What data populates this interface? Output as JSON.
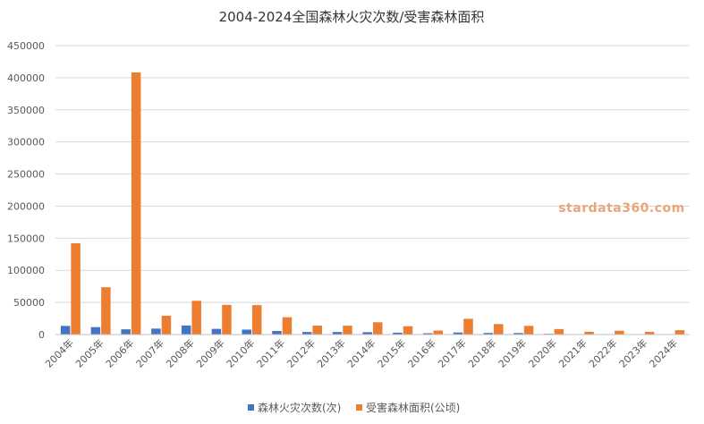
{
  "chart_data": {
    "type": "bar",
    "title": "2004-2024全国森林火灾次数/受害森林面积",
    "xlabel": "",
    "ylabel": "",
    "ylim": [
      0,
      450000
    ],
    "yticks": [
      0,
      50000,
      100000,
      150000,
      200000,
      250000,
      300000,
      350000,
      400000,
      450000
    ],
    "grid": true,
    "legend_position": "bottom",
    "categories": [
      "2004年",
      "2005年",
      "2006年",
      "2007年",
      "2008年",
      "2009年",
      "2010年",
      "2011年",
      "2012年",
      "2013年",
      "2014年",
      "2015年",
      "2016年",
      "2017年",
      "2018年",
      "2019年",
      "2020年",
      "2021年",
      "2022年",
      "2023年",
      "2024年"
    ],
    "series": [
      {
        "name": "森林火灾次数(次)",
        "color": "#4472c4",
        "values": [
          13466,
          11542,
          8170,
          9260,
          14144,
          8859,
          7723,
          5550,
          3966,
          3929,
          3703,
          2936,
          2034,
          3223,
          2478,
          2345,
          1153,
          616,
          709,
          328,
          242
        ]
      },
      {
        "name": "受害森林面积(公顷)",
        "color": "#ed7d31",
        "values": [
          142238,
          73701,
          408255,
          29286,
          52539,
          46156,
          45800,
          26950,
          13948,
          13724,
          19110,
          12940,
          6224,
          24502,
          16309,
          13505,
          8526,
          4300,
          6000,
          4100,
          6800
        ]
      }
    ]
  },
  "watermark": "stardata360.com"
}
